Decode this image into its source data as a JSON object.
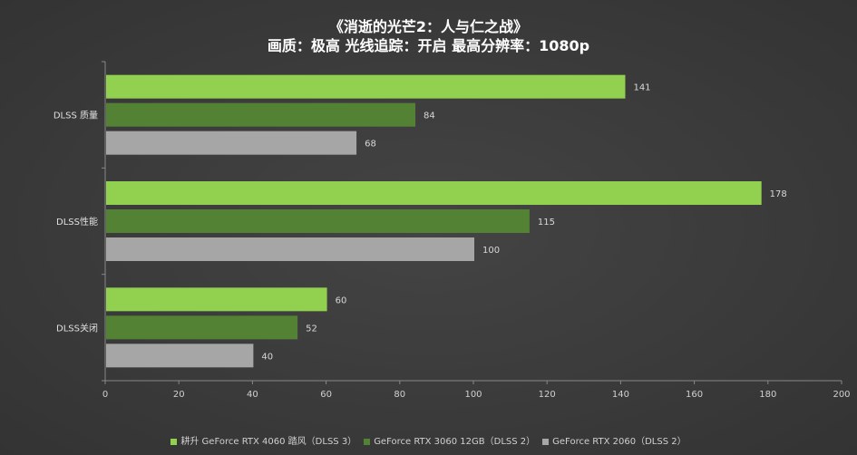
{
  "chart_data": {
    "type": "bar",
    "orientation": "horizontal",
    "title": "《消逝的光芒2：人与仁之战》",
    "subtitle": "画质：极高  光线追踪：开启  最高分辨率：1080p",
    "categories": [
      "DLSS 质量",
      "DLSS性能",
      "DLSS关闭"
    ],
    "series": [
      {
        "name": "耕升 GeForce RTX 4060 踏风（DLSS 3）",
        "color": "#92d050",
        "values": [
          141,
          178,
          60
        ]
      },
      {
        "name": "GeForce RTX 3060 12GB（DLSS 2）",
        "color": "#548235",
        "values": [
          84,
          115,
          52
        ]
      },
      {
        "name": "GeForce RTX 2060（DLSS 2）",
        "color": "#a6a6a6",
        "values": [
          68,
          100,
          40
        ]
      }
    ],
    "xlim": [
      0,
      200
    ],
    "xticks": [
      0,
      20,
      40,
      60,
      80,
      100,
      120,
      140,
      160,
      180,
      200
    ],
    "grid": false,
    "legend": "bottom"
  }
}
